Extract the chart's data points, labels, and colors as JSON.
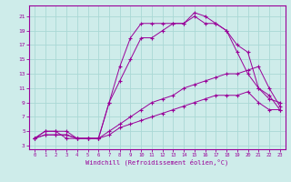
{
  "xlabel": "Windchill (Refroidissement éolien,°C)",
  "bg_color": "#ceecea",
  "grid_color": "#aad8d5",
  "line_color": "#990099",
  "x_ticks": [
    0,
    1,
    2,
    3,
    4,
    5,
    6,
    7,
    8,
    9,
    10,
    11,
    12,
    13,
    14,
    15,
    16,
    17,
    18,
    19,
    20,
    21,
    22,
    23
  ],
  "y_ticks": [
    3,
    5,
    7,
    9,
    11,
    13,
    15,
    17,
    19,
    21
  ],
  "xlim": [
    -0.5,
    23.5
  ],
  "ylim": [
    2.5,
    22.5
  ],
  "line1": {
    "x": [
      0,
      1,
      2,
      3,
      4,
      5,
      6,
      7,
      8,
      9,
      10,
      11,
      12,
      13,
      14,
      15,
      16,
      17,
      18,
      19,
      20,
      21,
      22,
      23
    ],
    "y": [
      4,
      5,
      5,
      5,
      4,
      4,
      4,
      9,
      14,
      18,
      20,
      20,
      20,
      20,
      20,
      21.5,
      21,
      20,
      19,
      17,
      16,
      11,
      9.5,
      9
    ]
  },
  "line2": {
    "x": [
      0,
      1,
      2,
      3,
      4,
      5,
      6,
      7,
      8,
      9,
      10,
      11,
      12,
      13,
      14,
      15,
      16,
      17,
      18,
      19,
      20,
      21,
      22,
      23
    ],
    "y": [
      4,
      5,
      5,
      4,
      4,
      4,
      4,
      9,
      12,
      15,
      18,
      18,
      19,
      20,
      20,
      21,
      20,
      20,
      19,
      16,
      13,
      11,
      10,
      8
    ]
  },
  "line3": {
    "x": [
      0,
      1,
      2,
      3,
      4,
      5,
      6,
      7,
      8,
      9,
      10,
      11,
      12,
      13,
      14,
      15,
      16,
      17,
      18,
      19,
      20,
      21,
      22,
      23
    ],
    "y": [
      4,
      4.5,
      4.5,
      4.5,
      4,
      4,
      4,
      5,
      6,
      7,
      8,
      9,
      9.5,
      10,
      11,
      11.5,
      12,
      12.5,
      13,
      13,
      13.5,
      14,
      11,
      8.5
    ]
  },
  "line4": {
    "x": [
      0,
      1,
      2,
      3,
      4,
      5,
      6,
      7,
      8,
      9,
      10,
      11,
      12,
      13,
      14,
      15,
      16,
      17,
      18,
      19,
      20,
      21,
      22,
      23
    ],
    "y": [
      4,
      4.5,
      4.5,
      4.5,
      4,
      4,
      4,
      4.5,
      5.5,
      6,
      6.5,
      7,
      7.5,
      8,
      8.5,
      9,
      9.5,
      10,
      10,
      10,
      10.5,
      9,
      8,
      8
    ]
  }
}
